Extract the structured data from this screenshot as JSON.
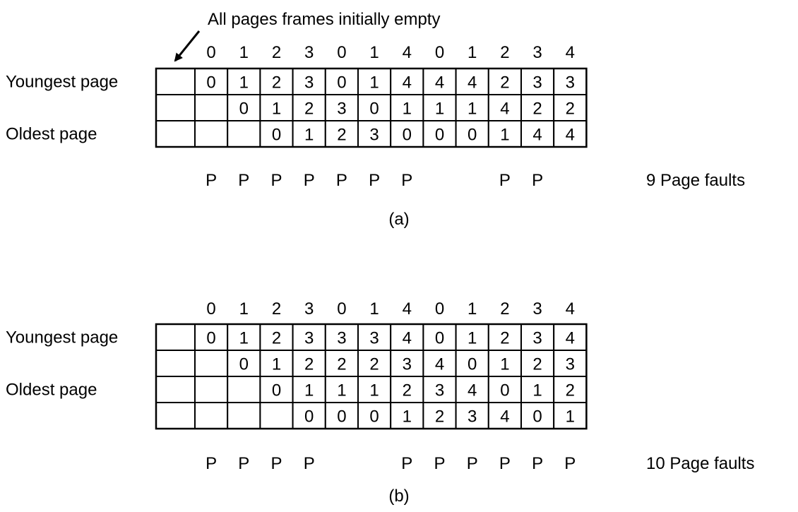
{
  "colors": {
    "line": "#000000",
    "background": "#ffffff"
  },
  "annotation": {
    "text": "All pages frames initially empty"
  },
  "diagrams": [
    {
      "id": "a",
      "caption": "(a)",
      "references": [
        0,
        1,
        2,
        3,
        0,
        1,
        4,
        0,
        1,
        2,
        3,
        4
      ],
      "row_labels": [
        "Youngest page",
        "",
        "Oldest page"
      ],
      "rows": [
        [
          "0",
          "1",
          "2",
          "3",
          "0",
          "1",
          "4",
          "4",
          "4",
          "2",
          "3",
          "3"
        ],
        [
          "",
          "0",
          "1",
          "2",
          "3",
          "0",
          "1",
          "1",
          "1",
          "4",
          "2",
          "2"
        ],
        [
          "",
          "",
          "0",
          "1",
          "2",
          "3",
          "0",
          "0",
          "0",
          "1",
          "4",
          "4"
        ]
      ],
      "faults": [
        "P",
        "P",
        "P",
        "P",
        "P",
        "P",
        "P",
        "",
        "",
        "P",
        "P",
        ""
      ],
      "fault_summary": "9 Page faults"
    },
    {
      "id": "b",
      "caption": "(b)",
      "references": [
        0,
        1,
        2,
        3,
        0,
        1,
        4,
        0,
        1,
        2,
        3,
        4
      ],
      "row_labels": [
        "Youngest page",
        "",
        "Oldest page",
        ""
      ],
      "rows": [
        [
          "0",
          "1",
          "2",
          "3",
          "3",
          "3",
          "4",
          "0",
          "1",
          "2",
          "3",
          "4"
        ],
        [
          "",
          "0",
          "1",
          "2",
          "2",
          "2",
          "3",
          "4",
          "0",
          "1",
          "2",
          "3"
        ],
        [
          "",
          "",
          "0",
          "1",
          "1",
          "1",
          "2",
          "3",
          "4",
          "0",
          "1",
          "2"
        ],
        [
          "",
          "",
          "",
          "0",
          "0",
          "0",
          "1",
          "2",
          "3",
          "4",
          "0",
          "1"
        ]
      ],
      "faults": [
        "P",
        "P",
        "P",
        "P",
        "",
        "",
        "P",
        "P",
        "P",
        "P",
        "P",
        "P"
      ],
      "fault_summary": "10 Page faults"
    }
  ]
}
